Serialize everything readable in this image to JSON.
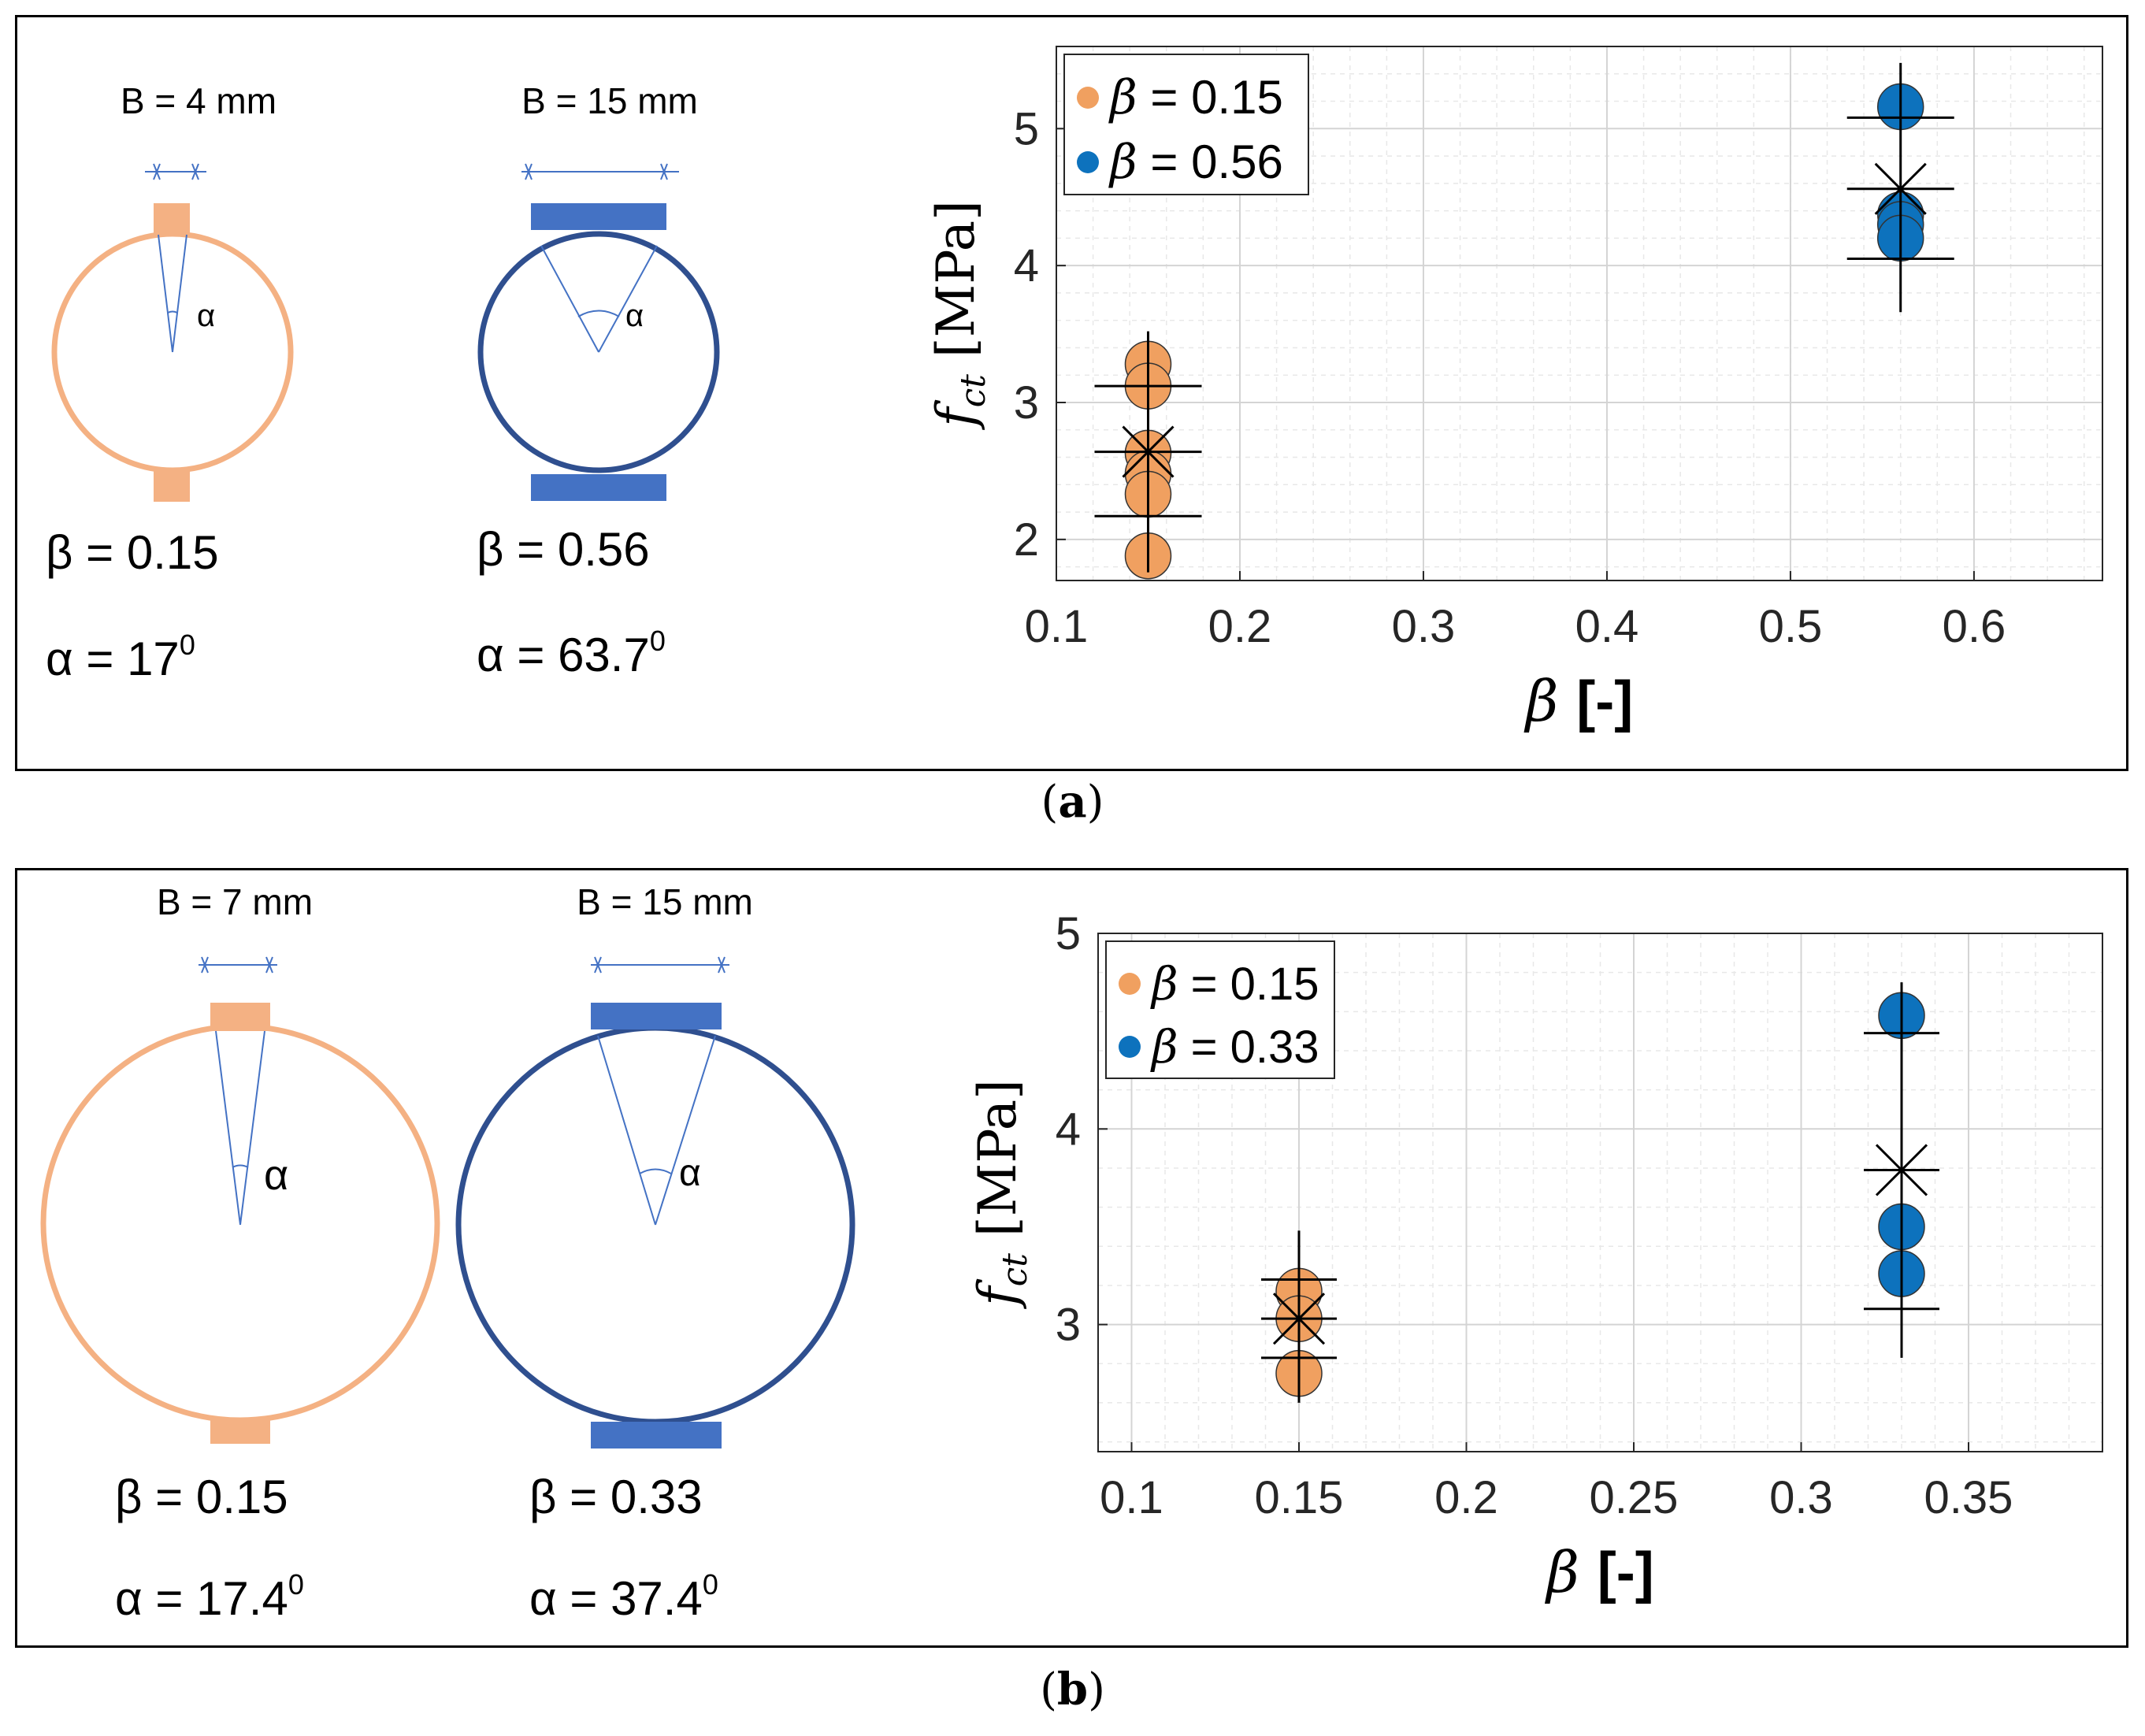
{
  "colors": {
    "orange": "#F0A060",
    "orange_sketch": "#F4B183",
    "blue": "#0D72BD",
    "blue_sketch": "#4472C4",
    "ring_blue": "#2F4F8F"
  },
  "panels": [
    {
      "caption_letter": "a",
      "sketch_left": {
        "B_label": "B = 4 mm",
        "alpha_symbol": "α",
        "beta_text": "β = 0.15",
        "alpha_text": "α = 17",
        "alpha_sup": "0"
      },
      "sketch_right": {
        "B_label": "B = 15 mm",
        "alpha_symbol": "α",
        "beta_text": "β = 0.56",
        "alpha_text": "α = 63.7",
        "alpha_sup": "0"
      }
    },
    {
      "caption_letter": "b",
      "sketch_left": {
        "B_label": "B = 7 mm",
        "alpha_symbol": "α",
        "beta_text": "β = 0.15",
        "alpha_text": "α = 17.4",
        "alpha_sup": "0"
      },
      "sketch_right": {
        "B_label": "B = 15 mm",
        "alpha_symbol": "α",
        "beta_text": "β = 0.33",
        "alpha_text": "α = 37.4",
        "alpha_sup": "0"
      }
    }
  ],
  "chart_data": [
    {
      "type": "scatter",
      "panel": "a",
      "xlabel": "β [-]",
      "ylabel": "f_ct [MPa]",
      "xlim": [
        0.1,
        0.67
      ],
      "ylim": [
        1.7,
        5.6
      ],
      "xticks": [
        0.1,
        0.2,
        0.3,
        0.4,
        0.5,
        0.6
      ],
      "xtick_labels": [
        "0.1",
        "0.2",
        "0.3",
        "0.4",
        "0.5",
        "0.6"
      ],
      "yticks": [
        2,
        3,
        4,
        5
      ],
      "ytick_labels": [
        "2",
        "3",
        "4",
        "5"
      ],
      "grid": true,
      "legend_position": "top-left",
      "series": [
        {
          "name": "β = 0.15",
          "color": "#F0A060",
          "x": [
            0.15,
            0.15,
            0.15,
            0.15,
            0.15,
            0.15
          ],
          "y": [
            3.28,
            3.12,
            2.63,
            2.48,
            2.33,
            1.88
          ],
          "mean": 2.64,
          "err_low": 2.17,
          "err_high": 3.12,
          "range": [
            1.76,
            3.52
          ]
        },
        {
          "name": "β = 0.56",
          "color": "#0D72BD",
          "x": [
            0.56,
            0.56,
            0.56,
            0.56
          ],
          "y": [
            5.16,
            4.37,
            4.3,
            4.2
          ],
          "mean": 4.56,
          "err_low": 4.05,
          "err_high": 5.08,
          "range": [
            3.66,
            5.48
          ]
        }
      ]
    },
    {
      "type": "scatter",
      "panel": "b",
      "xlabel": "β [-]",
      "ylabel": "f_ct [MPa]",
      "xlim": [
        0.09,
        0.39
      ],
      "ylim": [
        2.35,
        5.0
      ],
      "xticks": [
        0.1,
        0.15,
        0.2,
        0.25,
        0.3,
        0.35
      ],
      "xtick_labels": [
        "0.1",
        "0.15",
        "0.2",
        "0.25",
        "0.3",
        "0.35"
      ],
      "yticks": [
        3,
        4,
        5
      ],
      "ytick_labels": [
        "3",
        "4",
        "5"
      ],
      "grid": true,
      "legend_position": "top-left",
      "series": [
        {
          "name": "β = 0.15",
          "color": "#F0A060",
          "x": [
            0.15,
            0.15,
            0.15
          ],
          "y": [
            3.17,
            3.03,
            2.75
          ],
          "mean": 3.03,
          "err_low": 2.83,
          "err_high": 3.23,
          "range": [
            2.6,
            3.48
          ]
        },
        {
          "name": "β = 0.33",
          "color": "#0D72BD",
          "x": [
            0.33,
            0.33,
            0.33
          ],
          "y": [
            4.58,
            3.5,
            3.26
          ],
          "mean": 3.79,
          "err_low": 3.08,
          "err_high": 4.49,
          "range": [
            2.83,
            4.75
          ]
        }
      ]
    }
  ]
}
